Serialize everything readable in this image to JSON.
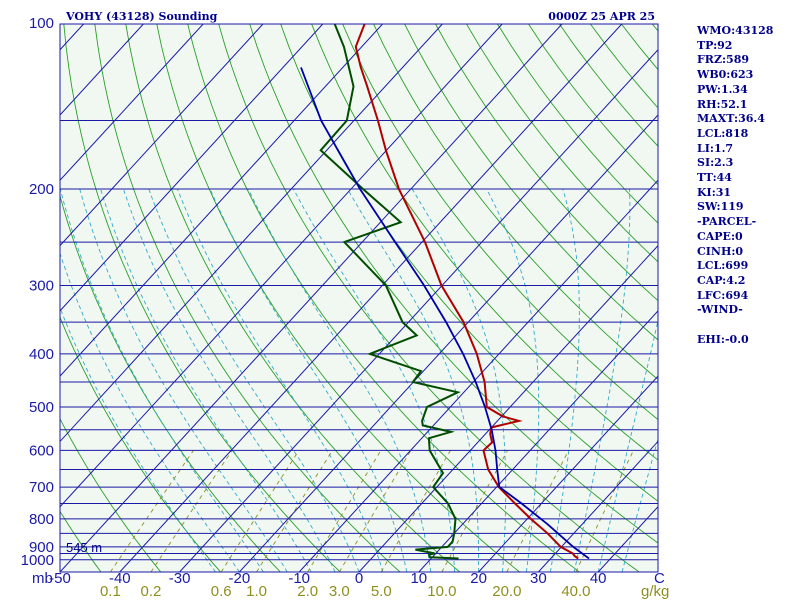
{
  "header": {
    "title": "VOHY (43128) Sounding",
    "time": "0000Z 25 APR 25"
  },
  "indices": [
    "WMO:43128",
    "TP:92",
    "FRZ:589",
    "WB0:623",
    "PW:1.34",
    "RH:52.1",
    "MAXT:36.4",
    "LCL:818",
    "LI:1.7",
    "SI:2.3",
    "TT:44",
    "KI:31",
    "SW:119",
    "-PARCEL-",
    "CAPE:0",
    "CINH:0",
    "LCL:699",
    "CAP:4.2",
    "LFC:694",
    "-WIND-",
    "",
    "EHI:-0.0"
  ],
  "colors": {
    "background": "#f1f7f1",
    "isobar": "#1a1aa6",
    "isotherm": "#1a1aa6",
    "dry_adiabat": "#2aa02a",
    "moist_adiabat": "#33aacc",
    "mixing_ratio": "#8f8f20",
    "temperature": "#b00000",
    "dewpoint": "#004d00",
    "parcel": "#0000aa"
  },
  "chart_data": {
    "type": "skew-t",
    "title": "VOHY (43128) Sounding",
    "subtitle": "0000Z 25 APR 25",
    "pressure_unit": "mb",
    "temperature_unit": "C",
    "mixing_ratio_unit": "g/kg",
    "p_range": [
      100,
      1000
    ],
    "t_range_at_base": [
      -50,
      50
    ],
    "pressure_ticks": [
      "100",
      "200",
      "300",
      "400",
      "500",
      "600",
      "700",
      "800",
      "900",
      "1000"
    ],
    "pressure_tick_values": [
      100,
      200,
      300,
      400,
      500,
      600,
      700,
      800,
      900,
      1000
    ],
    "isobar_levels": [
      100,
      150,
      200,
      250,
      300,
      350,
      400,
      450,
      500,
      550,
      600,
      650,
      700,
      750,
      800,
      850,
      900,
      925,
      950,
      1000
    ],
    "temperature_ticks": [
      "-50",
      "-40",
      "-30",
      "-20",
      "-10",
      "0",
      "10",
      "20",
      "30",
      "40"
    ],
    "temperature_tick_values": [
      -50,
      -40,
      -30,
      -20,
      -10,
      0,
      10,
      20,
      30,
      40
    ],
    "mixing_ratio_ticks": [
      "0.1",
      "0.2",
      "0.6",
      "1.0",
      "2.0",
      "3.0",
      "5.0",
      "10.0",
      "20.0",
      "40.0"
    ],
    "mixing_ratio_values": [
      0.1,
      0.2,
      0.6,
      1.0,
      2.0,
      3.0,
      5.0,
      10.0,
      20.0,
      40.0
    ],
    "surface_height_label": "545 m",
    "series": [
      {
        "key": "temperature",
        "p": [
          945,
          935,
          925,
          900,
          850,
          800,
          750,
          700,
          650,
          600,
          580,
          560,
          545,
          530,
          520,
          500,
          450,
          400,
          350,
          300,
          250,
          200,
          170,
          150,
          130,
          120,
          110,
          100
        ],
        "t": [
          34.6,
          33.6,
          32.9,
          29.9,
          25.6,
          20.6,
          15.6,
          10.4,
          5.9,
          2.2,
          2.4,
          0.8,
          0.0,
          3.6,
          0.2,
          -3.9,
          -8.1,
          -13.7,
          -20.8,
          -30.1,
          -39.5,
          -52.0,
          -60.1,
          -66.0,
          -73.0,
          -77.0,
          -81.0,
          -83.0
        ]
      },
      {
        "key": "dewpoint",
        "p": [
          945,
          940,
          930,
          925,
          910,
          900,
          880,
          850,
          800,
          750,
          700,
          660,
          600,
          570,
          555,
          540,
          530,
          500,
          470,
          450,
          430,
          400,
          370,
          350,
          300,
          250,
          230,
          200,
          170,
          150,
          130,
          110,
          100
        ],
        "t": [
          14.6,
          9.6,
          9.1,
          9.8,
          6.0,
          11.0,
          11.0,
          10.0,
          8.0,
          4.4,
          -0.6,
          -1.1,
          -6.8,
          -8.8,
          -6.1,
          -11.8,
          -12.6,
          -13.9,
          -11.0,
          -20.1,
          -20.4,
          -31.6,
          -26.6,
          -31.0,
          -39.4,
          -53.0,
          -46.6,
          -58.0,
          -71.0,
          -71.2,
          -75.3,
          -83.0,
          -88.0
        ]
      },
      {
        "key": "parcel",
        "p": [
          945,
          900,
          818,
          750,
          699,
          650,
          600,
          550,
          500,
          450,
          400,
          350,
          300,
          250,
          200,
          150,
          120
        ],
        "t": [
          36.4,
          32.0,
          24.2,
          16.7,
          10.4,
          7.4,
          4.2,
          0.4,
          -4.2,
          -9.6,
          -16.0,
          -23.7,
          -33.0,
          -44.5,
          -58.5,
          -75.5,
          -87.0
        ]
      }
    ]
  }
}
